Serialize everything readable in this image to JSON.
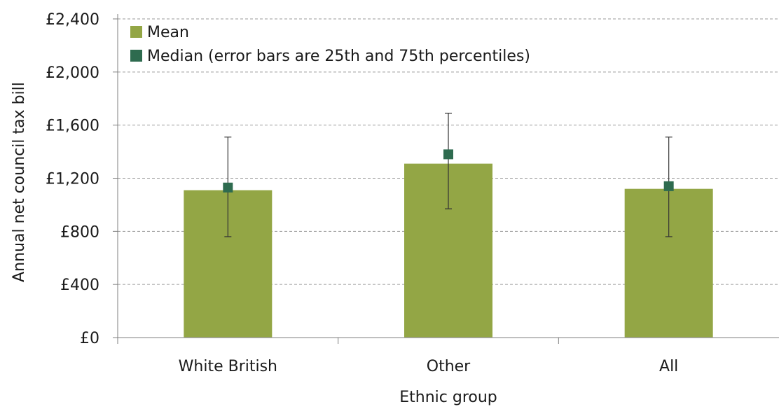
{
  "chart_data": {
    "type": "bar",
    "title": "",
    "xlabel": "Ethnic group",
    "ylabel": "Annual net council tax bill",
    "categories": [
      "White British",
      "Other",
      "All"
    ],
    "ylim": [
      0,
      2400
    ],
    "yticks": [
      0,
      400,
      800,
      1200,
      1600,
      2000,
      2400
    ],
    "ytick_labels": [
      "£0",
      "£400",
      "£800",
      "£1,200",
      "£1,600",
      "£2,000",
      "£2,400"
    ],
    "grid": true,
    "legend_position": "top-left",
    "series": [
      {
        "name": "Mean",
        "type": "bar",
        "color": "#93a645",
        "values": [
          1110,
          1310,
          1120
        ]
      },
      {
        "name": "Median (error bars are 25th and 75th percentiles)",
        "type": "marker",
        "color": "#2e6b4f",
        "values": [
          1130,
          1380,
          1140
        ],
        "lower": [
          760,
          970,
          760
        ],
        "upper": [
          1510,
          1690,
          1510
        ]
      }
    ]
  }
}
